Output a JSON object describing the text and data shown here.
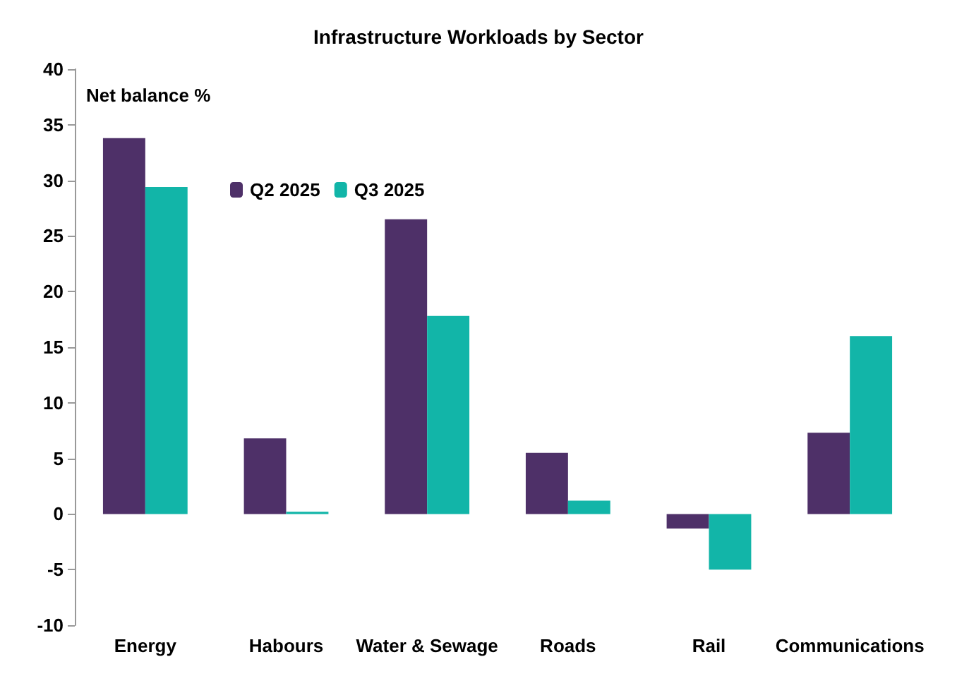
{
  "chart_data": {
    "type": "bar",
    "title": "Infrastructure Workloads by Sector",
    "ylabel": "Net balance %",
    "categories": [
      "Energy",
      "Habours",
      "Water & Sewage",
      "Roads",
      "Rail",
      "Communications"
    ],
    "series": [
      {
        "name": "Q2 2025",
        "color": "#4e3068",
        "values": [
          33.8,
          6.8,
          26.5,
          5.5,
          -1.3,
          7.3
        ]
      },
      {
        "name": "Q3 2025",
        "color": "#12b5a8",
        "values": [
          29.4,
          0.2,
          17.8,
          1.2,
          -5.0,
          16.0
        ]
      }
    ],
    "ylim": [
      -10,
      40
    ],
    "yticks": [
      -10,
      -5,
      0,
      5,
      10,
      15,
      20,
      25,
      30,
      35,
      40
    ],
    "grid": false,
    "legend": "top left"
  }
}
